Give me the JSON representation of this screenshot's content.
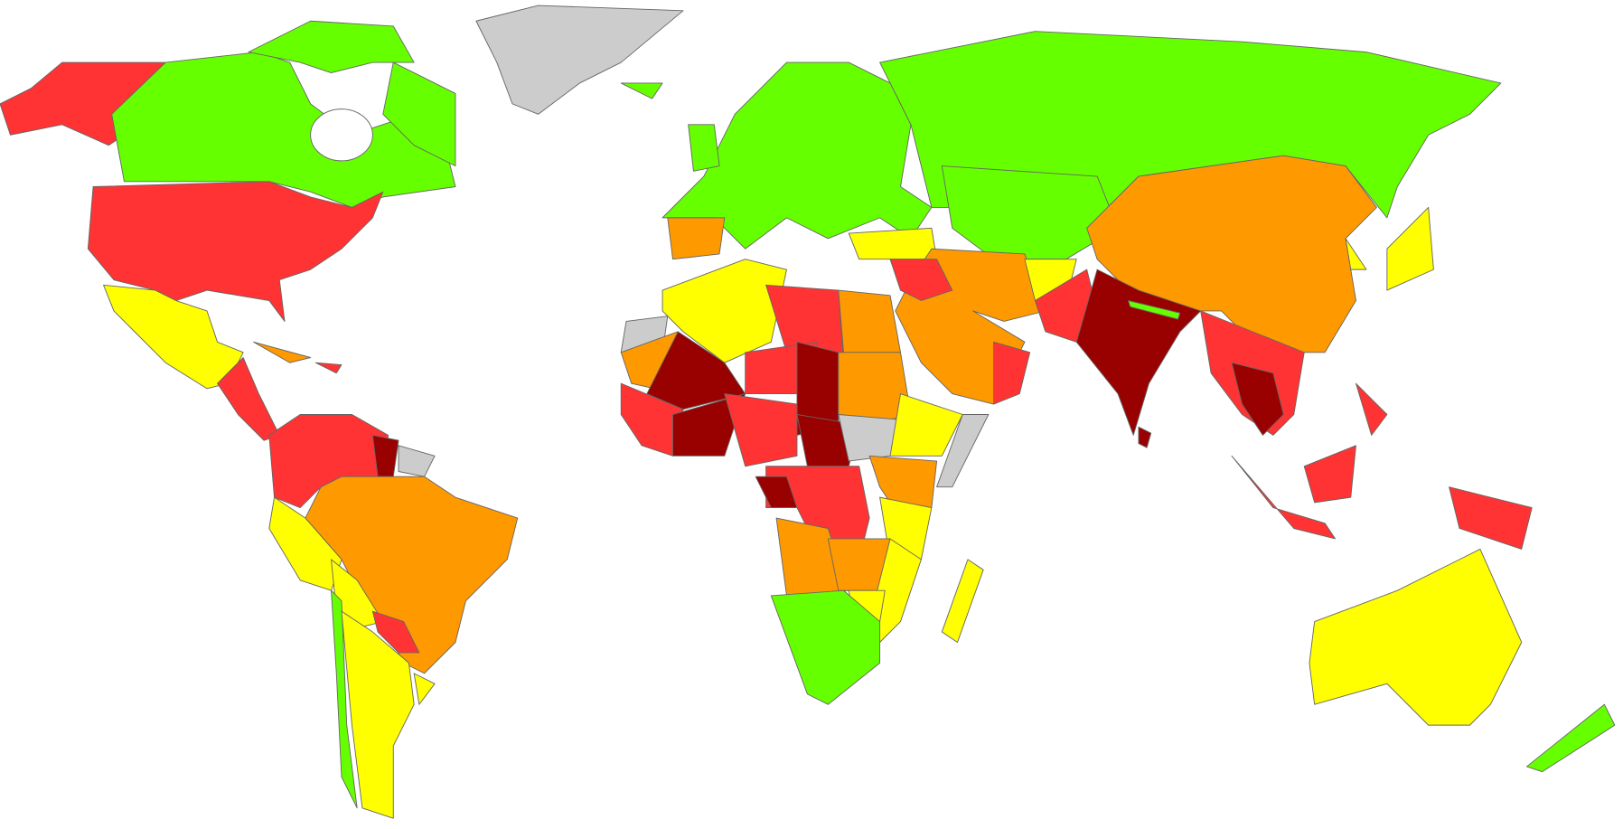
{
  "palette": [
    "#66ff00",
    "#ffff00",
    "#ff9900",
    "#ff3333",
    "#990000",
    "#cccccc"
  ]
}
